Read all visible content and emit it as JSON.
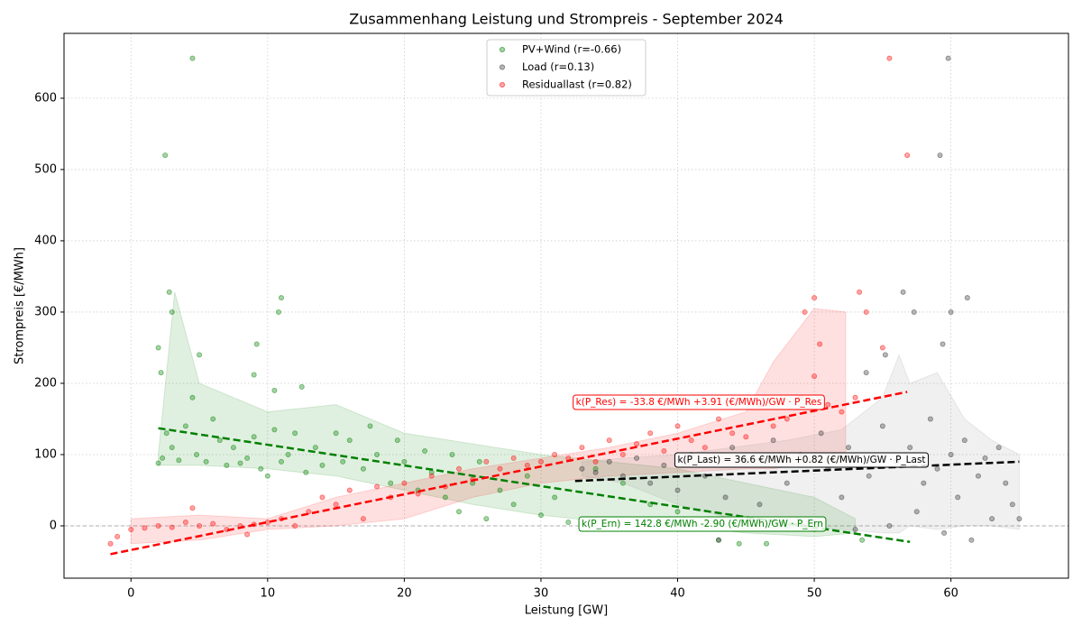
{
  "chart_data": {
    "type": "scatter",
    "title": "Zusammenhang Leistung und Strompreis - September 2024",
    "x_label": "Leistung [GW]",
    "y_label": "Strompreis [€/MWh]",
    "xlim": [
      -4.9,
      68.6
    ],
    "ylim": [
      -73.4,
      691
    ],
    "xticks": [
      0,
      10,
      20,
      30,
      40,
      50,
      60
    ],
    "yticks": [
      0,
      100,
      200,
      300,
      400,
      500,
      600
    ],
    "grid": true,
    "legend": "upper center",
    "series": [
      {
        "name": "PV+Wind (r=-0.66)",
        "color": "#008000",
        "x": [
          2,
          2.3,
          2.6,
          3,
          3.5,
          4,
          4.8,
          5.5,
          6,
          6.5,
          7,
          7.5,
          8,
          8.5,
          9,
          9.5,
          10,
          10.5,
          11,
          11.5,
          12,
          12.8,
          13.5,
          14,
          15,
          15.5,
          16,
          17,
          17.5,
          18,
          19,
          19.5,
          20,
          21,
          21.5,
          22,
          23,
          23.5,
          24,
          25,
          25.5,
          26,
          27,
          28,
          29,
          30,
          31,
          32,
          34,
          36,
          38,
          40,
          43,
          44.5,
          46.5,
          48,
          50,
          53.5,
          4.5,
          2.5,
          2.8,
          11,
          3,
          10.8,
          9.2,
          2,
          5,
          2.2,
          9,
          4.5,
          12.5,
          10.5
        ],
        "y": [
          88,
          95,
          130,
          110,
          92,
          140,
          100,
          90,
          150,
          120,
          85,
          110,
          88,
          95,
          125,
          80,
          70,
          135,
          90,
          100,
          130,
          75,
          110,
          85,
          130,
          90,
          120,
          80,
          140,
          100,
          60,
          120,
          90,
          50,
          105,
          75,
          40,
          100,
          20,
          60,
          90,
          10,
          50,
          30,
          70,
          15,
          40,
          5,
          80,
          60,
          30,
          20,
          -20,
          -25,
          -25,
          0,
          -5,
          -20,
          656,
          520,
          328,
          320,
          300,
          300,
          255,
          250,
          240,
          215,
          212,
          180,
          195,
          190
        ]
      },
      {
        "name": "Load (r=0.13)",
        "color": "#333333",
        "x": [
          33,
          34,
          35,
          36,
          37,
          38,
          39,
          40,
          41,
          42,
          43,
          43.5,
          44,
          45,
          46,
          47,
          48,
          49,
          50,
          50.5,
          51,
          52,
          52.5,
          53,
          54,
          55,
          55.5,
          56,
          57,
          57.5,
          58,
          58.5,
          59,
          59.5,
          60,
          60.5,
          61,
          61.5,
          62,
          62.5,
          63,
          63.5,
          64,
          64.5,
          65,
          59.8,
          59.2,
          56.5,
          61.2,
          60,
          57.3,
          59.4,
          55.2,
          53.8
        ],
        "y": [
          80,
          75,
          90,
          70,
          95,
          60,
          85,
          50,
          100,
          70,
          -20,
          40,
          110,
          90,
          30,
          120,
          60,
          100,
          5,
          130,
          80,
          40,
          110,
          -5,
          70,
          140,
          0,
          90,
          110,
          20,
          60,
          150,
          80,
          -10,
          100,
          40,
          120,
          -20,
          70,
          95,
          10,
          110,
          60,
          30,
          10,
          656,
          520,
          328,
          320,
          300,
          300,
          255,
          240,
          215
        ]
      },
      {
        "name": "Residuallast (r=0.82)",
        "color": "#ff0000",
        "x": [
          -1.5,
          -1,
          0,
          1,
          2,
          3,
          4,
          4.5,
          5,
          6,
          7,
          8,
          8.5,
          9,
          10,
          11,
          12,
          13,
          14,
          15,
          16,
          17,
          18,
          19,
          20,
          21,
          22,
          23,
          24,
          25,
          26,
          27,
          28,
          29,
          30,
          31,
          32,
          33,
          34,
          35,
          36,
          37,
          38,
          39,
          40,
          41,
          42,
          43,
          44,
          45,
          46,
          47,
          48,
          49,
          50,
          51,
          52,
          53,
          55.5,
          56.8,
          50,
          53.3,
          49.3,
          53.8,
          50.4,
          55
        ],
        "y": [
          -25,
          -15,
          -5,
          -3,
          0,
          -2,
          5,
          25,
          0,
          3,
          -5,
          0,
          -12,
          2,
          5,
          10,
          0,
          20,
          40,
          30,
          50,
          10,
          55,
          40,
          60,
          45,
          70,
          55,
          80,
          65,
          90,
          80,
          95,
          85,
          90,
          100,
          95,
          110,
          90,
          120,
          100,
          115,
          130,
          105,
          140,
          120,
          110,
          150,
          130,
          125,
          170,
          140,
          150,
          180,
          210,
          170,
          160,
          180,
          656,
          520,
          320,
          328,
          300,
          300,
          255,
          250
        ]
      }
    ],
    "bands": [
      {
        "color": "#008000",
        "x": [
          2,
          3.2,
          5,
          10,
          15,
          20,
          25,
          30,
          35,
          40,
          45,
          50,
          53
        ],
        "upper": [
          100,
          328,
          200,
          160,
          170,
          130,
          115,
          100,
          90,
          80,
          60,
          40,
          10
        ],
        "lower": [
          85,
          85,
          85,
          80,
          70,
          50,
          30,
          15,
          5,
          0,
          -10,
          -15,
          -10
        ]
      },
      {
        "color": "#ff0000",
        "x": [
          0,
          5,
          10,
          15,
          20,
          25,
          30,
          35,
          40,
          45,
          47,
          50,
          52.3
        ],
        "upper": [
          10,
          15,
          10,
          40,
          60,
          80,
          95,
          110,
          130,
          160,
          230,
          305,
          300
        ],
        "lower": [
          -25,
          -20,
          -5,
          0,
          10,
          40,
          60,
          70,
          75,
          80,
          80,
          90,
          90
        ]
      },
      {
        "color": "#808080",
        "x": [
          33,
          36,
          40,
          44,
          48,
          52,
          55,
          56.2,
          57,
          59,
          61,
          63,
          65
        ],
        "upper": [
          90,
          95,
          100,
          110,
          120,
          135,
          180,
          240,
          200,
          215,
          150,
          120,
          100
        ],
        "lower": [
          70,
          60,
          30,
          10,
          0,
          -5,
          -10,
          -10,
          0,
          -5,
          0,
          0,
          -5
        ]
      }
    ],
    "trend_lines": [
      {
        "name": "k(P_Ern) = 142.8 €/MWh -2.90 (€/MWh)/GW · P_Ern",
        "color": "#008000",
        "x": [
          2,
          57
        ],
        "y": [
          137,
          -22.5
        ]
      },
      {
        "name": "k(P_Res) = -33.8 €/MWh +3.91 (€/MWh)/GW · P_Res",
        "color": "#ff0000",
        "x": [
          -1.5,
          56.8
        ],
        "y": [
          -39.7,
          188
        ]
      },
      {
        "name": "k(P_Last) = 36.6 €/MWh +0.82 (€/MWh)/GW · P_Last",
        "color": "#000000",
        "x": [
          32.5,
          65
        ],
        "y": [
          63,
          90
        ]
      }
    ]
  }
}
